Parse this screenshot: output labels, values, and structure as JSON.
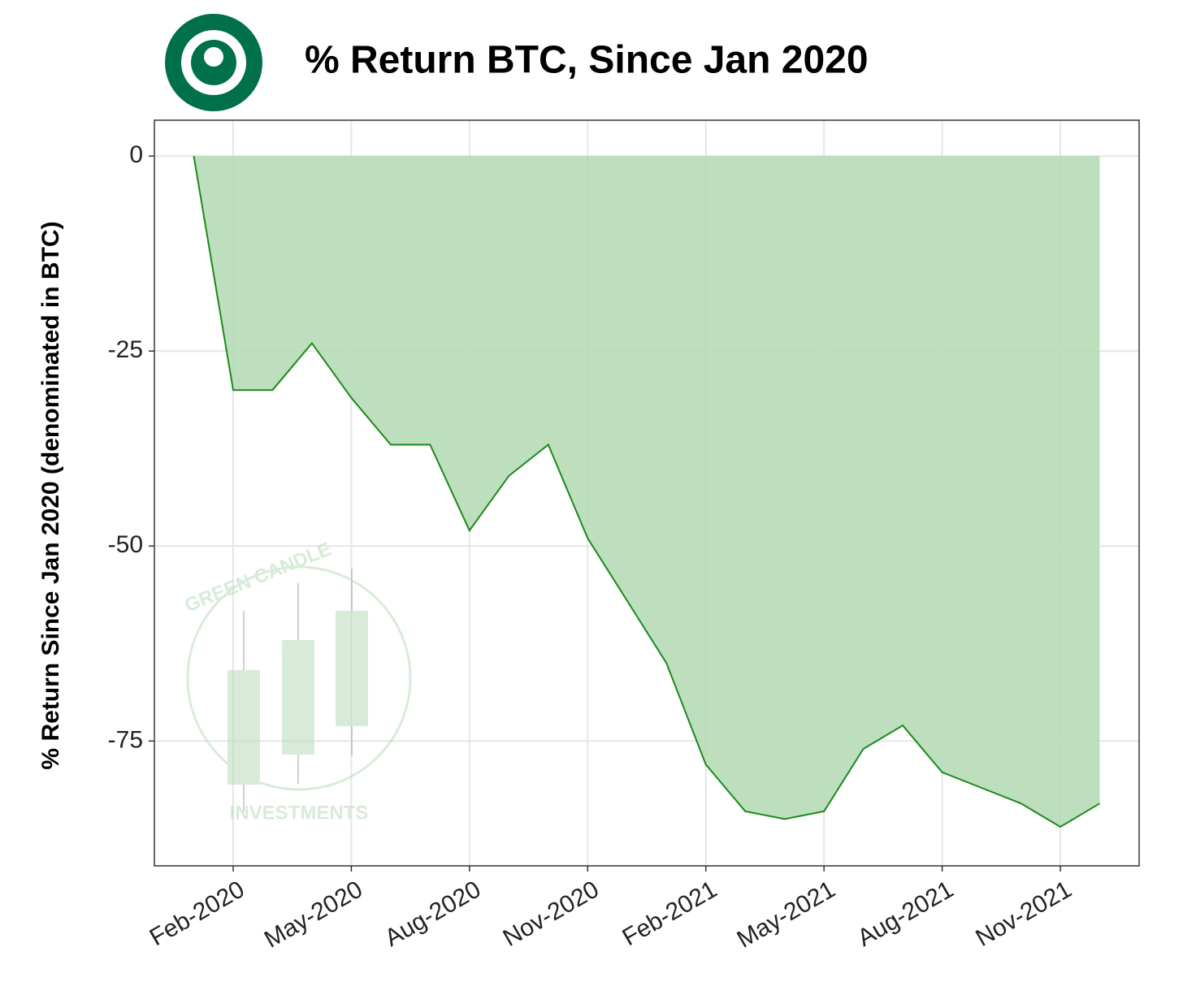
{
  "chart_data": {
    "type": "area",
    "title": "% Return BTC, Since Jan 2020",
    "y_label": "% Return Since Jan 2020 (denominated in BTC)",
    "watermark": [
      "GREEN CANDLE",
      "INVESTMENTS"
    ],
    "x": [
      "2020-01",
      "2020-02",
      "2020-03",
      "2020-04",
      "2020-05",
      "2020-06",
      "2020-07",
      "2020-08",
      "2020-09",
      "2020-10",
      "2020-11",
      "2020-12",
      "2021-01",
      "2021-02",
      "2021-03",
      "2021-04",
      "2021-05",
      "2021-06",
      "2021-07",
      "2021-08",
      "2021-09",
      "2021-10",
      "2021-11",
      "2021-12"
    ],
    "values": [
      0,
      -30,
      -30,
      -24,
      -31,
      -37,
      -37,
      -48,
      -41,
      -37,
      -49,
      -57,
      -65,
      -78,
      -84,
      -85,
      -84,
      -76,
      -73,
      -79,
      -81,
      -83,
      -86,
      -83
    ],
    "color": "#1a8a1a",
    "fill": "#b3d9b2",
    "xlim": [
      "2019-12",
      "2022-01"
    ],
    "xticks": [
      {
        "value": "2020-02",
        "label": "Feb-2020"
      },
      {
        "value": "2020-05",
        "label": "May-2020"
      },
      {
        "value": "2020-08",
        "label": "Aug-2020"
      },
      {
        "value": "2020-11",
        "label": "Nov-2020"
      },
      {
        "value": "2021-02",
        "label": "Feb-2021"
      },
      {
        "value": "2021-05",
        "label": "May-2021"
      },
      {
        "value": "2021-08",
        "label": "Aug-2021"
      },
      {
        "value": "2021-11",
        "label": "Nov-2021"
      }
    ],
    "ylim": [
      -91,
      4.6
    ],
    "yticks": [
      0,
      -25,
      -50,
      -75
    ],
    "grid": true
  }
}
